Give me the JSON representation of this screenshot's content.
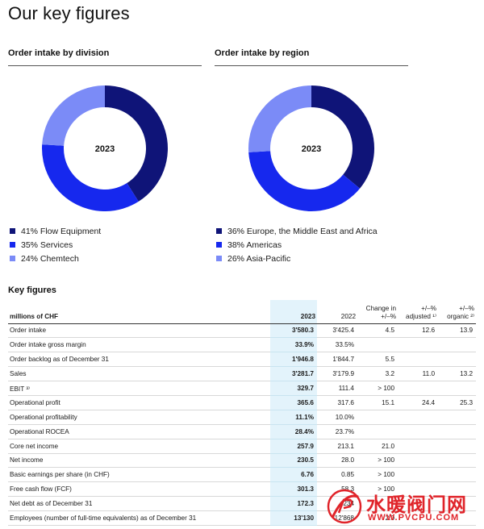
{
  "page": {
    "title": "Our key figures"
  },
  "colors": {
    "navy": "#0f1478",
    "blue": "#1628ee",
    "light_blue": "#7b8bf7",
    "highlight": "#e3f3fb",
    "watermark": "#e0242a"
  },
  "chart_data": [
    {
      "type": "pie",
      "title": "Order intake by division",
      "center_label": "2023",
      "slices": [
        {
          "label": "41% Flow Equipment",
          "value": 41,
          "color": "#0f1478"
        },
        {
          "label": "35% Services",
          "value": 35,
          "color": "#1628ee"
        },
        {
          "label": "24% Chemtech",
          "value": 24,
          "color": "#7b8bf7"
        }
      ]
    },
    {
      "type": "pie",
      "title": "Order intake by region",
      "center_label": "2023",
      "slices": [
        {
          "label": "36% Europe, the Middle East and Africa",
          "value": 36,
          "color": "#0f1478"
        },
        {
          "label": "38% Americas",
          "value": 38,
          "color": "#1628ee"
        },
        {
          "label": "26% Asia-Pacific",
          "value": 26,
          "color": "#7b8bf7"
        }
      ]
    }
  ],
  "key_figures": {
    "title": "Key figures",
    "headers": [
      "millions of CHF",
      "2023",
      "2022",
      "Change in +/–%",
      "+/–% adjusted ¹⁾",
      "+/–% organic ²⁾"
    ],
    "rows": [
      [
        "Order intake",
        "3'580.3",
        "3'425.4",
        "4.5",
        "12.6",
        "13.9"
      ],
      [
        "Order intake gross margin",
        "33.9%",
        "33.5%",
        "",
        "",
        ""
      ],
      [
        "Order backlog as of December 31",
        "1'946.8",
        "1'844.7",
        "5.5",
        "",
        ""
      ],
      [
        "Sales",
        "3'281.7",
        "3'179.9",
        "3.2",
        "11.0",
        "13.2"
      ],
      [
        "EBIT ³⁾",
        "329.7",
        "111.4",
        "> 100",
        "",
        ""
      ],
      [
        "Operational profit",
        "365.6",
        "317.6",
        "15.1",
        "24.4",
        "25.3"
      ],
      [
        "Operational profitability",
        "11.1%",
        "10.0%",
        "",
        "",
        ""
      ],
      [
        "Operational ROCEA",
        "28.4%",
        "23.7%",
        "",
        "",
        ""
      ],
      [
        "Core net income",
        "257.9",
        "213.1",
        "21.0",
        "",
        ""
      ],
      [
        "Net income",
        "230.5",
        "28.0",
        "> 100",
        "",
        ""
      ],
      [
        "Basic earnings per share (in CHF)",
        "6.76",
        "0.85",
        "> 100",
        "",
        ""
      ],
      [
        "Free cash flow (FCF)",
        "301.3",
        "58.3",
        "> 100",
        "",
        ""
      ],
      [
        "Net debt as of December 31",
        "172.3",
        "234",
        "",
        "",
        ""
      ],
      [
        "Employees (number of full-time equivalents) as of December 31",
        "13'130",
        "12'868",
        "2.0",
        "",
        ""
      ]
    ]
  },
  "watermark": {
    "text": "水暖阀门网",
    "url": "WWW.PVCPU.COM"
  }
}
